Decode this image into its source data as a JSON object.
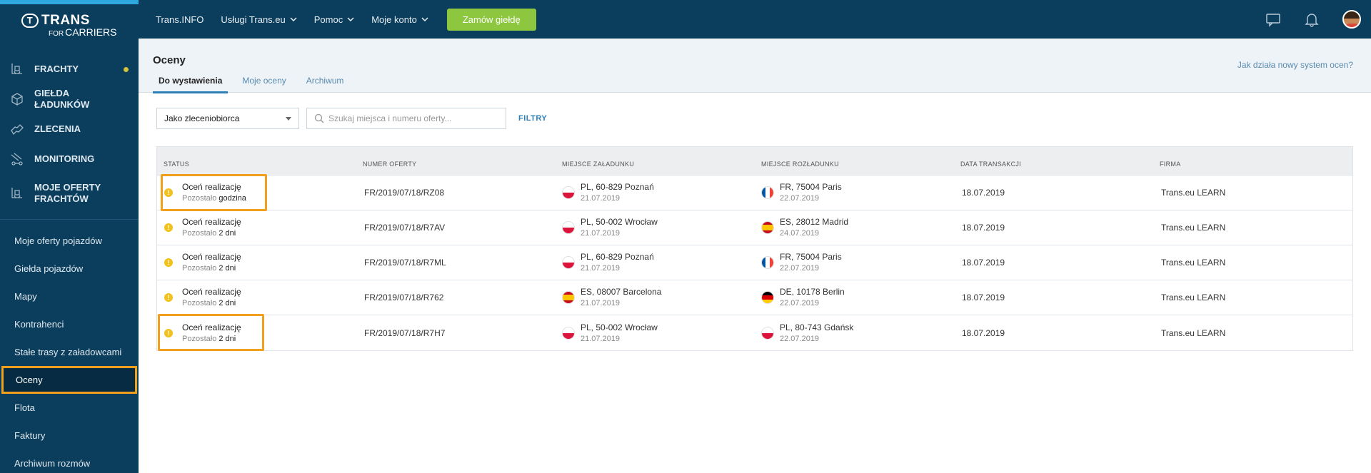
{
  "app": {
    "logo_main": "TRANS",
    "logo_sub_small": "FOR",
    "logo_sub": "CARRIERS",
    "logo_ring": "T"
  },
  "sidebar": {
    "main_items": [
      {
        "label": "FRACHTY",
        "icon": "cargo-icon",
        "dot": true
      },
      {
        "label": "GIEŁDA ŁADUNKÓW",
        "icon": "box-icon"
      },
      {
        "label": "ZLECENIA",
        "icon": "handshake-icon"
      },
      {
        "label": "MONITORING",
        "icon": "truck-icon"
      },
      {
        "label": "MOJE OFERTY FRACHTÓW",
        "icon": "cargo-offers-icon"
      }
    ],
    "sub_items": [
      {
        "label": "Moje oferty pojazdów"
      },
      {
        "label": "Giełda pojazdów"
      },
      {
        "label": "Mapy"
      },
      {
        "label": "Kontrahenci"
      },
      {
        "label": "Stałe trasy z załadowcami"
      },
      {
        "label": "Oceny",
        "active": true
      },
      {
        "label": "Flota"
      },
      {
        "label": "Faktury"
      },
      {
        "label": "Archiwum rozmów"
      }
    ]
  },
  "topbar": {
    "links": [
      {
        "label": "Trans.INFO",
        "chevron": false
      },
      {
        "label": "Usługi Trans.eu",
        "chevron": true
      },
      {
        "label": "Pomoc",
        "chevron": true
      },
      {
        "label": "Moje konto",
        "chevron": true
      }
    ],
    "order_button": "Zamów giełdę"
  },
  "header": {
    "title": "Oceny",
    "tabs": [
      {
        "label": "Do wystawienia",
        "active": true
      },
      {
        "label": "Moje oceny"
      },
      {
        "label": "Archiwum"
      }
    ],
    "help_link": "Jak działa nowy system ocen?"
  },
  "filters": {
    "role_value": "Jako zleceniobiorca",
    "search_placeholder": "Szukaj miejsca i numeru oferty...",
    "filters_label": "FILTRY"
  },
  "table": {
    "columns": [
      "STATUS",
      "NUMER OFERTY",
      "MIEJSCE ZAŁADUNKU",
      "MIEJSCE ROZŁADUNKU",
      "DATA TRANSAKCJI",
      "FIRMA"
    ],
    "rows": [
      {
        "status": "Oceń realizację",
        "remaining_label": "Pozostało",
        "remaining_value": "godzina",
        "offer": "FR/2019/07/18/RZ08",
        "load_place": "PL, 60-829 Poznań",
        "load_date": "21.07.2019",
        "load_flag": "pl",
        "unload_place": "FR, 75004 Paris",
        "unload_date": "22.07.2019",
        "unload_flag": "fr",
        "date": "18.07.2019",
        "company": "Trans.eu LEARN",
        "highlighted": true
      },
      {
        "status": "Oceń realizację",
        "remaining_label": "Pozostało",
        "remaining_value": "2 dni",
        "offer": "FR/2019/07/18/R7AV",
        "load_place": "PL, 50-002 Wrocław",
        "load_date": "21.07.2019",
        "load_flag": "pl",
        "unload_place": "ES, 28012 Madrid",
        "unload_date": "24.07.2019",
        "unload_flag": "es",
        "date": "18.07.2019",
        "company": "Trans.eu LEARN"
      },
      {
        "status": "Oceń realizację",
        "remaining_label": "Pozostało",
        "remaining_value": "2 dni",
        "offer": "FR/2019/07/18/R7ML",
        "load_place": "PL, 60-829 Poznań",
        "load_date": "21.07.2019",
        "load_flag": "pl",
        "unload_place": "FR, 75004 Paris",
        "unload_date": "22.07.2019",
        "unload_flag": "fr",
        "date": "18.07.2019",
        "company": "Trans.eu LEARN"
      },
      {
        "status": "Oceń realizację",
        "remaining_label": "Pozostało",
        "remaining_value": "2 dni",
        "offer": "FR/2019/07/18/R762",
        "load_place": "ES, 08007 Barcelona",
        "load_date": "21.07.2019",
        "load_flag": "es",
        "unload_place": "DE, 10178 Berlin",
        "unload_date": "22.07.2019",
        "unload_flag": "de",
        "date": "18.07.2019",
        "company": "Trans.eu LEARN"
      },
      {
        "status": "Oceń realizację",
        "remaining_label": "Pozostało",
        "remaining_value": "2 dni",
        "offer": "FR/2019/07/18/R7H7",
        "load_place": "PL, 50-002 Wrocław",
        "load_date": "21.07.2019",
        "load_flag": "pl",
        "unload_place": "PL, 80-743 Gdańsk",
        "unload_date": "22.07.2019",
        "unload_flag": "pl",
        "date": "18.07.2019",
        "company": "Trans.eu LEARN",
        "highlighted": true
      }
    ]
  },
  "colors": {
    "sidebar_bg": "#0b3d5c",
    "accent_blue": "#2d7fb8",
    "order_green": "#8dc63f",
    "highlight_orange": "#f0a01c",
    "warning_yellow": "#f3c11b"
  }
}
